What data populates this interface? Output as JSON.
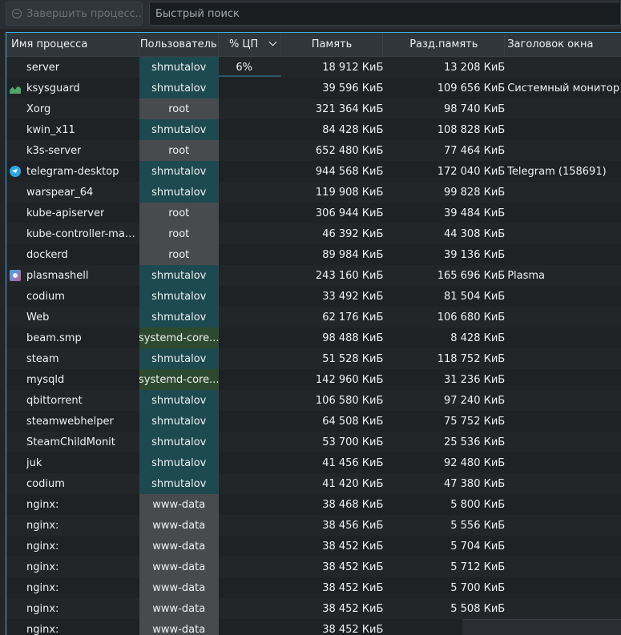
{
  "toolbar": {
    "kill_label": "Завершить процесс...",
    "search_placeholder": "Быстрый поиск"
  },
  "columns": [
    "Имя процесса",
    "Пользователь",
    "% ЦП",
    "Память",
    "Разд.память",
    "Заголовок окна"
  ],
  "rows": [
    {
      "name": "server",
      "user": "shmutalov",
      "user_kind": "self",
      "cpu": "6%",
      "mem": "18 912 КиБ",
      "shared": "13 208 КиБ",
      "title": "",
      "icon": ""
    },
    {
      "name": "ksysguard",
      "user": "shmutalov",
      "user_kind": "self",
      "cpu": "",
      "mem": "39 596 КиБ",
      "shared": "109 656 КиБ",
      "title": "Системный монитор",
      "icon": "ksysguard-icon"
    },
    {
      "name": "Xorg",
      "user": "root",
      "user_kind": "root",
      "cpu": "",
      "mem": "321 364 КиБ",
      "shared": "98 740 КиБ",
      "title": "",
      "icon": ""
    },
    {
      "name": "kwin_x11",
      "user": "shmutalov",
      "user_kind": "self",
      "cpu": "",
      "mem": "84 428 КиБ",
      "shared": "108 828 КиБ",
      "title": "",
      "icon": ""
    },
    {
      "name": "k3s-server",
      "user": "root",
      "user_kind": "root",
      "cpu": "",
      "mem": "652 480 КиБ",
      "shared": "77 464 КиБ",
      "title": "",
      "icon": ""
    },
    {
      "name": "telegram-desktop",
      "user": "shmutalov",
      "user_kind": "self",
      "cpu": "",
      "mem": "944 568 КиБ",
      "shared": "172 040 КиБ",
      "title": "Telegram (158691)",
      "icon": "telegram-icon"
    },
    {
      "name": "warspear_64",
      "user": "shmutalov",
      "user_kind": "self",
      "cpu": "",
      "mem": "119 908 КиБ",
      "shared": "99 828 КиБ",
      "title": "",
      "icon": ""
    },
    {
      "name": "kube-apiserver",
      "user": "root",
      "user_kind": "root",
      "cpu": "",
      "mem": "306 944 КиБ",
      "shared": "39 484 КиБ",
      "title": "",
      "icon": ""
    },
    {
      "name": "kube-controller-man...",
      "user": "root",
      "user_kind": "root",
      "cpu": "",
      "mem": "46 392 КиБ",
      "shared": "44 308 КиБ",
      "title": "",
      "icon": ""
    },
    {
      "name": "dockerd",
      "user": "root",
      "user_kind": "root",
      "cpu": "",
      "mem": "89 984 КиБ",
      "shared": "39 136 КиБ",
      "title": "",
      "icon": ""
    },
    {
      "name": "plasmashell",
      "user": "shmutalov",
      "user_kind": "self",
      "cpu": "",
      "mem": "243 160 КиБ",
      "shared": "165 696 КиБ",
      "title": "Plasma",
      "icon": "plasma-icon"
    },
    {
      "name": "codium",
      "user": "shmutalov",
      "user_kind": "self",
      "cpu": "",
      "mem": "33 492 КиБ",
      "shared": "81 504 КиБ",
      "title": "",
      "icon": ""
    },
    {
      "name": "Web",
      "user": "shmutalov",
      "user_kind": "self",
      "cpu": "",
      "mem": "62 176 КиБ",
      "shared": "106 680 КиБ",
      "title": "",
      "icon": ""
    },
    {
      "name": "beam.smp",
      "user": "systemd-core...",
      "user_kind": "sysd",
      "cpu": "",
      "mem": "98 488 КиБ",
      "shared": "8 428 КиБ",
      "title": "",
      "icon": ""
    },
    {
      "name": "steam",
      "user": "shmutalov",
      "user_kind": "self",
      "cpu": "",
      "mem": "51 528 КиБ",
      "shared": "118 752 КиБ",
      "title": "",
      "icon": ""
    },
    {
      "name": "mysqld",
      "user": "systemd-core...",
      "user_kind": "sysd",
      "cpu": "",
      "mem": "142 960 КиБ",
      "shared": "31 236 КиБ",
      "title": "",
      "icon": ""
    },
    {
      "name": "qbittorrent",
      "user": "shmutalov",
      "user_kind": "self",
      "cpu": "",
      "mem": "106 580 КиБ",
      "shared": "97 240 КиБ",
      "title": "",
      "icon": ""
    },
    {
      "name": "steamwebhelper",
      "user": "shmutalov",
      "user_kind": "self",
      "cpu": "",
      "mem": "64 508 КиБ",
      "shared": "75 752 КиБ",
      "title": "",
      "icon": ""
    },
    {
      "name": "SteamChildMonit",
      "user": "shmutalov",
      "user_kind": "self",
      "cpu": "",
      "mem": "53 700 КиБ",
      "shared": "25 536 КиБ",
      "title": "",
      "icon": ""
    },
    {
      "name": "juk",
      "user": "shmutalov",
      "user_kind": "self",
      "cpu": "",
      "mem": "41 456 КиБ",
      "shared": "92 480 КиБ",
      "title": "",
      "icon": ""
    },
    {
      "name": "codium",
      "user": "shmutalov",
      "user_kind": "self",
      "cpu": "",
      "mem": "41 420 КиБ",
      "shared": "47 380 КиБ",
      "title": "",
      "icon": ""
    },
    {
      "name": "nginx:",
      "user": "www-data",
      "user_kind": "www",
      "cpu": "",
      "mem": "38 468 КиБ",
      "shared": "5 800 КиБ",
      "title": "",
      "icon": ""
    },
    {
      "name": "nginx:",
      "user": "www-data",
      "user_kind": "www",
      "cpu": "",
      "mem": "38 456 КиБ",
      "shared": "5 556 КиБ",
      "title": "",
      "icon": ""
    },
    {
      "name": "nginx:",
      "user": "www-data",
      "user_kind": "www",
      "cpu": "",
      "mem": "38 452 КиБ",
      "shared": "5 704 КиБ",
      "title": "",
      "icon": ""
    },
    {
      "name": "nginx:",
      "user": "www-data",
      "user_kind": "www",
      "cpu": "",
      "mem": "38 452 КиБ",
      "shared": "5 712 КиБ",
      "title": "",
      "icon": ""
    },
    {
      "name": "nginx:",
      "user": "www-data",
      "user_kind": "www",
      "cpu": "",
      "mem": "38 452 КиБ",
      "shared": "5 700 КиБ",
      "title": "",
      "icon": ""
    },
    {
      "name": "nginx:",
      "user": "www-data",
      "user_kind": "www",
      "cpu": "",
      "mem": "38 452 КиБ",
      "shared": "5 508 КиБ",
      "title": "",
      "icon": ""
    },
    {
      "name": "nginx:",
      "user": "www-data",
      "user_kind": "www",
      "cpu": "",
      "mem": "38 452 КиБ",
      "shared": "5",
      "title": "",
      "icon": ""
    }
  ]
}
